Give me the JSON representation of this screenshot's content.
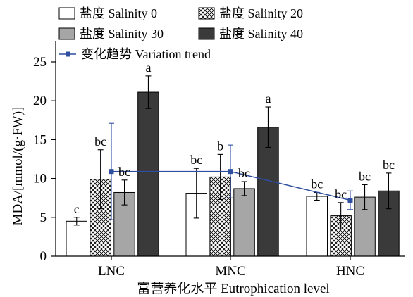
{
  "chart_data": {
    "type": "bar",
    "categories": [
      "LNC",
      "MNC",
      "HNC"
    ],
    "xlabel": "富营养化水平 Eutrophication level",
    "ylabel": "MDA/[mmol/(g·FW)]",
    "ylim": [
      0,
      25
    ],
    "yticks": [
      "0",
      "5",
      "10",
      "15",
      "20",
      "25"
    ],
    "legend_position": "top-left",
    "series": [
      {
        "name": "盐度 Salinity 0",
        "fill": "#ffffff",
        "pattern": "none",
        "values": [
          4.5,
          8.1,
          7.7
        ],
        "errors": [
          0.5,
          3.2,
          0.5
        ],
        "labels": [
          "c",
          "bc",
          "bc"
        ]
      },
      {
        "name": "盐度 Salinity 20",
        "fill": "#ffffff",
        "pattern": "crosshatch",
        "values": [
          9.9,
          10.2,
          5.2
        ],
        "errors": [
          3.8,
          2.9,
          1.7
        ],
        "labels": [
          "bc",
          "b",
          "bc"
        ]
      },
      {
        "name": "盐度 Salinity 30",
        "fill": "#a6a6a6",
        "pattern": "none",
        "values": [
          8.2,
          8.7,
          7.6
        ],
        "errors": [
          1.6,
          0.9,
          1.6
        ],
        "labels": [
          "bc",
          "bc",
          "bc"
        ]
      },
      {
        "name": "盐度 Salinity 40",
        "fill": "#3a3a3a",
        "pattern": "none",
        "values": [
          21.1,
          16.6,
          8.4
        ],
        "errors": [
          2.1,
          2.6,
          2.3
        ],
        "labels": [
          "a",
          "a",
          "bc"
        ]
      }
    ],
    "trend": {
      "name": "变化趋势 Variation trend",
      "color": "#2e4fa0",
      "values": [
        10.9,
        10.9,
        7.2
      ],
      "errors": [
        6.2,
        3.4,
        1.2
      ]
    }
  }
}
